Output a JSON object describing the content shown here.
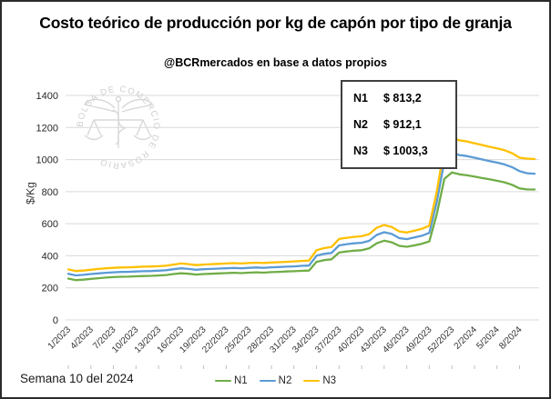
{
  "title": "Costo teórico de producción por kg de capón por tipo de granja",
  "subtitle": "@BCRmercados en base a datos propios",
  "watermark": "BOLSA DE COMERCIO DE ROSARIO",
  "week_note": "Semana 10 del 2024",
  "callout_box": {
    "rows": [
      {
        "label": "N1",
        "value": "$ 813,2"
      },
      {
        "label": "N2",
        "value": "$ 912,1"
      },
      {
        "label": "N3",
        "value": "$ 1003,3"
      }
    ]
  },
  "legend": [
    {
      "label": "N1",
      "color": "#70AD47"
    },
    {
      "label": "N2",
      "color": "#5B9BD5"
    },
    {
      "label": "N3",
      "color": "#FFC000"
    }
  ],
  "colors": {
    "n1_green": "#70AD47",
    "n2_blue": "#5B9BD5",
    "n3_gold": "#FFC000",
    "gridline": "#D9D9D9",
    "watermark": "#D6D6D6"
  },
  "chart_data": {
    "type": "line",
    "title": "Costo teórico de producción por kg de capón por tipo de granja",
    "subtitle": "@BCRmercados en base a datos propios",
    "xlabel": "",
    "ylabel": "$/Kg",
    "ylim": [
      0,
      1400
    ],
    "yticks": [
      0,
      200,
      400,
      600,
      800,
      1000,
      1200,
      1400
    ],
    "grid": true,
    "legend_position": "bottom",
    "x_unit": "semana/año",
    "label_every": 3,
    "x_labels_shown": [
      "1/2023",
      "4/2023",
      "7/2023",
      "10/2023",
      "13/2023",
      "16/2023",
      "19/2023",
      "22/2023",
      "25/2023",
      "28/2023",
      "31/2023",
      "34/2023",
      "37/2023",
      "40/2023",
      "43/2023",
      "46/2023",
      "49/2023",
      "52/2023",
      "2/2024",
      "5/2024",
      "8/2024"
    ],
    "categories": [
      "1/2023",
      "2/2023",
      "3/2023",
      "4/2023",
      "5/2023",
      "6/2023",
      "7/2023",
      "8/2023",
      "9/2023",
      "10/2023",
      "11/2023",
      "12/2023",
      "13/2023",
      "14/2023",
      "15/2023",
      "16/2023",
      "17/2023",
      "18/2023",
      "19/2023",
      "20/2023",
      "21/2023",
      "22/2023",
      "23/2023",
      "24/2023",
      "25/2023",
      "26/2023",
      "27/2023",
      "28/2023",
      "29/2023",
      "30/2023",
      "31/2023",
      "32/2023",
      "33/2023",
      "34/2023",
      "35/2023",
      "36/2023",
      "37/2023",
      "38/2023",
      "39/2023",
      "40/2023",
      "41/2023",
      "42/2023",
      "43/2023",
      "44/2023",
      "45/2023",
      "46/2023",
      "47/2023",
      "48/2023",
      "49/2023",
      "50/2023",
      "51/2023",
      "52/2023",
      "53/2023",
      "1/2024",
      "2/2024",
      "3/2024",
      "4/2024",
      "5/2024",
      "6/2024",
      "7/2024",
      "8/2024",
      "9/2024",
      "10/2024"
    ],
    "series": [
      {
        "name": "N1",
        "color": "#70AD47",
        "last_value": 813.2,
        "values": [
          258,
          248,
          251,
          256,
          260,
          264,
          267,
          269,
          270,
          272,
          274,
          275,
          277,
          280,
          286,
          291,
          288,
          283,
          286,
          288,
          290,
          292,
          294,
          292,
          295,
          297,
          295,
          298,
          300,
          302,
          304,
          306,
          308,
          362,
          373,
          378,
          420,
          427,
          432,
          435,
          446,
          478,
          494,
          484,
          462,
          456,
          465,
          475,
          490,
          660,
          880,
          920,
          908,
          902,
          894,
          885,
          877,
          868,
          858,
          843,
          820,
          814,
          813.2
        ]
      },
      {
        "name": "N2",
        "color": "#5B9BD5",
        "last_value": 912.1,
        "values": [
          288,
          278,
          281,
          286,
          290,
          294,
          297,
          299,
          300,
          302,
          304,
          305,
          307,
          310,
          316,
          322,
          318,
          313,
          316,
          318,
          320,
          322,
          324,
          322,
          325,
          327,
          325,
          328,
          330,
          332,
          334,
          337,
          339,
          400,
          412,
          418,
          465,
          472,
          478,
          481,
          493,
          530,
          547,
          536,
          510,
          504,
          514,
          525,
          543,
          735,
          990,
          1042,
          1028,
          1022,
          1012,
          1001,
          991,
          981,
          970,
          953,
          928,
          915,
          912.1
        ]
      },
      {
        "name": "N3",
        "color": "#FFC000",
        "last_value": 1003.3,
        "values": [
          315,
          305,
          308,
          313,
          318,
          322,
          325,
          327,
          328,
          330,
          332,
          333,
          335,
          338,
          345,
          352,
          348,
          342,
          345,
          348,
          350,
          352,
          354,
          352,
          355,
          357,
          355,
          358,
          360,
          362,
          365,
          368,
          370,
          435,
          448,
          455,
          505,
          512,
          518,
          522,
          535,
          575,
          592,
          580,
          552,
          545,
          556,
          568,
          588,
          800,
          1080,
          1135,
          1120,
          1113,
          1102,
          1091,
          1080,
          1070,
          1058,
          1040,
          1012,
          1006,
          1003.3
        ]
      }
    ]
  }
}
